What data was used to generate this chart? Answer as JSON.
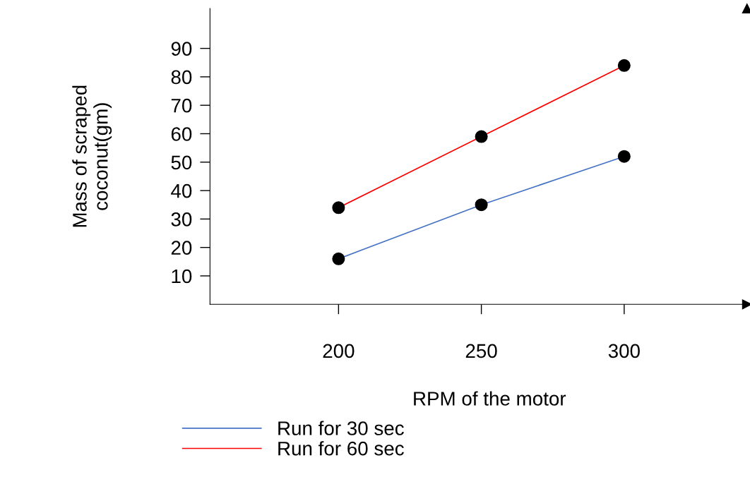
{
  "chart_data": {
    "type": "line",
    "xlabel": "RPM of the motor",
    "ylabel": "Mass of scraped\ncoconut(gm)",
    "x": [
      200,
      250,
      300
    ],
    "series": [
      {
        "name": "Run for 30 sec",
        "color": "#4472c4",
        "values": [
          16,
          35,
          52
        ]
      },
      {
        "name": "Run for 60 sec",
        "color": "#ff0000",
        "values": [
          34,
          59,
          84
        ]
      }
    ],
    "xlim": [
      155,
      343
    ],
    "xticks": [
      200,
      250,
      300
    ],
    "ylim": [
      0,
      104
    ],
    "yticks": [
      10,
      20,
      30,
      40,
      50,
      60,
      70,
      80,
      90
    ],
    "marker": "circle",
    "line_style": "solid",
    "grid": false,
    "legend": "bottom"
  }
}
